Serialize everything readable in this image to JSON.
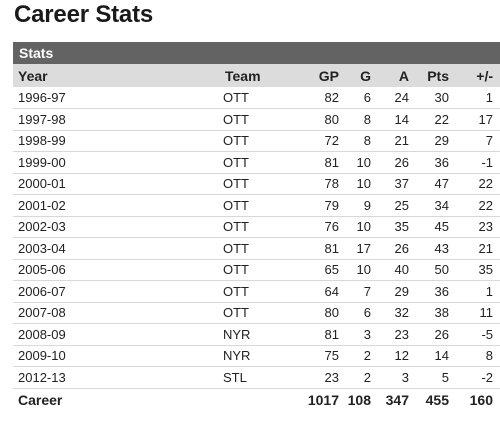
{
  "page": {
    "title": "Career Stats"
  },
  "panel": {
    "header": "Stats"
  },
  "table": {
    "columns": [
      "Year",
      "Team",
      "GP",
      "G",
      "A",
      "Pts",
      "+/-"
    ],
    "rows": [
      [
        "1996-97",
        "OTT",
        "82",
        "6",
        "24",
        "30",
        "1"
      ],
      [
        "1997-98",
        "OTT",
        "80",
        "8",
        "14",
        "22",
        "17"
      ],
      [
        "1998-99",
        "OTT",
        "72",
        "8",
        "21",
        "29",
        "7"
      ],
      [
        "1999-00",
        "OTT",
        "81",
        "10",
        "26",
        "36",
        "-1"
      ],
      [
        "2000-01",
        "OTT",
        "78",
        "10",
        "37",
        "47",
        "22"
      ],
      [
        "2001-02",
        "OTT",
        "79",
        "9",
        "25",
        "34",
        "22"
      ],
      [
        "2002-03",
        "OTT",
        "76",
        "10",
        "35",
        "45",
        "23"
      ],
      [
        "2003-04",
        "OTT",
        "81",
        "17",
        "26",
        "43",
        "21"
      ],
      [
        "2005-06",
        "OTT",
        "65",
        "10",
        "40",
        "50",
        "35"
      ],
      [
        "2006-07",
        "OTT",
        "64",
        "7",
        "29",
        "36",
        "1"
      ],
      [
        "2007-08",
        "OTT",
        "80",
        "6",
        "32",
        "38",
        "11"
      ],
      [
        "2008-09",
        "NYR",
        "81",
        "3",
        "23",
        "26",
        "-5"
      ],
      [
        "2009-10",
        "NYR",
        "75",
        "2",
        "12",
        "14",
        "8"
      ],
      [
        "2012-13",
        "STL",
        "23",
        "2",
        "3",
        "5",
        "-2"
      ]
    ],
    "totals": {
      "label": "Career",
      "team": "",
      "gp": "1017",
      "g": "108",
      "a": "347",
      "pts": "455",
      "pm": "160"
    }
  },
  "colors": {
    "panel_header_bg": "#636363",
    "column_header_bg": "#dcdcdc",
    "row_divider": "#d8d8d8"
  }
}
